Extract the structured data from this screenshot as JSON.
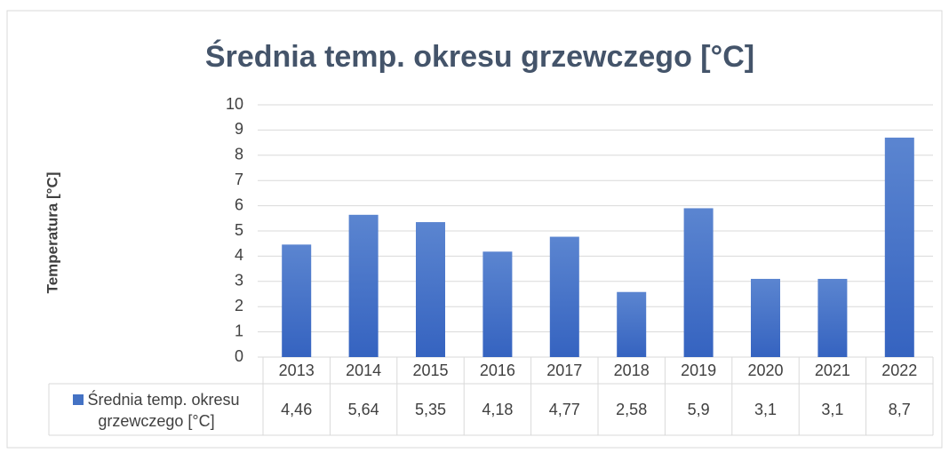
{
  "chart_data": {
    "type": "bar",
    "title": "Średnia temp. okresu grzewczego [°C]",
    "y_axis_label": "Temperatura [°C]",
    "categories": [
      "2013",
      "2014",
      "2015",
      "2016",
      "2017",
      "2018",
      "2019",
      "2020",
      "2021",
      "2022"
    ],
    "series": [
      {
        "name": "Średnia temp. okresu grzewczego [°C]",
        "color": "#4472c4",
        "values": [
          4.46,
          5.64,
          5.35,
          4.18,
          4.77,
          2.58,
          5.9,
          3.1,
          3.1,
          8.7
        ],
        "value_labels": [
          "4,46",
          "5,64",
          "5,35",
          "4,18",
          "4,77",
          "2,58",
          "5,9",
          "3,1",
          "3,1",
          "8,7"
        ]
      }
    ],
    "ylim": [
      0,
      10
    ],
    "yticks": [
      0,
      1,
      2,
      3,
      4,
      5,
      6,
      7,
      8,
      9,
      10
    ],
    "grid": true
  }
}
